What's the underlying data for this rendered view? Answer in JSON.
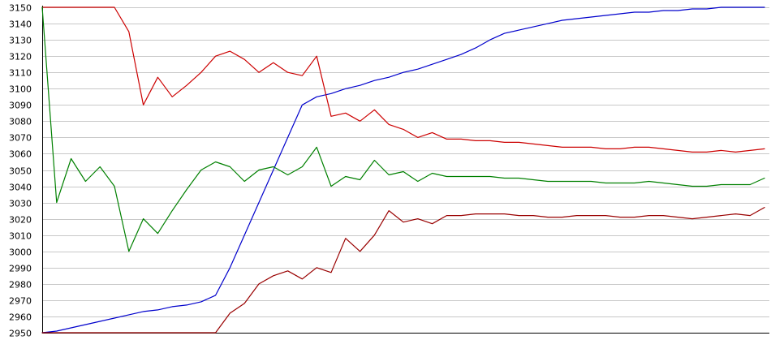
{
  "chart_data": {
    "type": "line",
    "title": "",
    "xlabel": "",
    "ylabel": "",
    "ylim": [
      2950,
      3150
    ],
    "yticks": [
      2950,
      2960,
      2970,
      2980,
      2990,
      3000,
      3010,
      3020,
      3030,
      3040,
      3050,
      3060,
      3070,
      3080,
      3090,
      3100,
      3110,
      3120,
      3130,
      3140,
      3150
    ],
    "xlim": [
      0,
      100
    ],
    "grid": true,
    "legend": "none",
    "series": [
      {
        "color": "#0000cc",
        "x": [
          0,
          2,
          4,
          6,
          8,
          10,
          12,
          14,
          16,
          18,
          20,
          22,
          24,
          26,
          28,
          30,
          32,
          34,
          36,
          38,
          40,
          42,
          44,
          46,
          48,
          50,
          52,
          54,
          56,
          58,
          60,
          62,
          64,
          66,
          68,
          70,
          72,
          74,
          76,
          78,
          80,
          82,
          84,
          86,
          88,
          90,
          92,
          94,
          96,
          98,
          100
        ],
        "y": [
          2950,
          2951,
          2953,
          2955,
          2957,
          2959,
          2961,
          2963,
          2964,
          2966,
          2967,
          2969,
          2973,
          2990,
          3010,
          3030,
          3050,
          3070,
          3090,
          3095,
          3097,
          3100,
          3102,
          3105,
          3107,
          3110,
          3112,
          3115,
          3118,
          3121,
          3125,
          3130,
          3134,
          3136,
          3138,
          3140,
          3142,
          3143,
          3144,
          3145,
          3146,
          3147,
          3147,
          3148,
          3148,
          3149,
          3149,
          3150,
          3150,
          3150,
          3150
        ]
      },
      {
        "color": "#cc0000",
        "x": [
          0,
          2,
          4,
          6,
          8,
          10,
          12,
          14,
          16,
          18,
          20,
          22,
          24,
          26,
          28,
          30,
          32,
          34,
          36,
          38,
          40,
          42,
          44,
          46,
          48,
          50,
          52,
          54,
          56,
          58,
          60,
          62,
          64,
          66,
          68,
          70,
          72,
          74,
          76,
          78,
          80,
          82,
          84,
          86,
          88,
          90,
          92,
          94,
          96,
          98,
          100
        ],
        "y": [
          3150,
          3150,
          3150,
          3150,
          3150,
          3150,
          3135,
          3090,
          3107,
          3095,
          3102,
          3110,
          3120,
          3123,
          3118,
          3110,
          3116,
          3110,
          3108,
          3120,
          3083,
          3085,
          3080,
          3087,
          3078,
          3075,
          3070,
          3073,
          3069,
          3069,
          3068,
          3068,
          3067,
          3067,
          3066,
          3065,
          3064,
          3064,
          3064,
          3063,
          3063,
          3064,
          3064,
          3063,
          3062,
          3061,
          3061,
          3062,
          3061,
          3062,
          3063
        ]
      },
      {
        "color": "#008000",
        "x": [
          0,
          2,
          4,
          6,
          8,
          10,
          12,
          14,
          16,
          18,
          20,
          22,
          24,
          26,
          28,
          30,
          32,
          34,
          36,
          38,
          40,
          42,
          44,
          46,
          48,
          50,
          52,
          54,
          56,
          58,
          60,
          62,
          64,
          66,
          68,
          70,
          72,
          74,
          76,
          78,
          80,
          82,
          84,
          86,
          88,
          90,
          92,
          94,
          96,
          98,
          100
        ],
        "y": [
          3150,
          3030,
          3057,
          3043,
          3052,
          3040,
          3000,
          3020,
          3011,
          3025,
          3038,
          3050,
          3055,
          3052,
          3043,
          3050,
          3052,
          3047,
          3052,
          3064,
          3040,
          3046,
          3044,
          3056,
          3047,
          3049,
          3043,
          3048,
          3046,
          3046,
          3046,
          3046,
          3045,
          3045,
          3044,
          3043,
          3043,
          3043,
          3043,
          3042,
          3042,
          3042,
          3043,
          3042,
          3041,
          3040,
          3040,
          3041,
          3041,
          3041,
          3045
        ]
      },
      {
        "color": "#990000",
        "x": [
          0,
          2,
          4,
          6,
          8,
          10,
          12,
          14,
          16,
          18,
          20,
          22,
          24,
          26,
          28,
          30,
          32,
          34,
          36,
          38,
          40,
          42,
          44,
          46,
          48,
          50,
          52,
          54,
          56,
          58,
          60,
          62,
          64,
          66,
          68,
          70,
          72,
          74,
          76,
          78,
          80,
          82,
          84,
          86,
          88,
          90,
          92,
          94,
          96,
          98,
          100
        ],
        "y": [
          2950,
          2950,
          2950,
          2950,
          2950,
          2950,
          2950,
          2950,
          2950,
          2950,
          2950,
          2950,
          2950,
          2962,
          2968,
          2980,
          2985,
          2988,
          2983,
          2990,
          2987,
          3008,
          3000,
          3010,
          3025,
          3018,
          3020,
          3017,
          3022,
          3022,
          3023,
          3023,
          3023,
          3022,
          3022,
          3021,
          3021,
          3022,
          3022,
          3022,
          3021,
          3021,
          3022,
          3022,
          3021,
          3020,
          3021,
          3022,
          3023,
          3022,
          3027
        ]
      }
    ]
  }
}
